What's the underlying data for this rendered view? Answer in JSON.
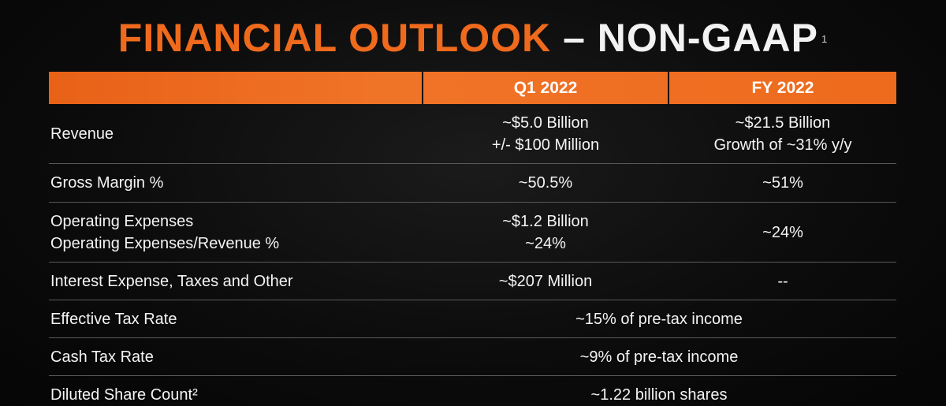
{
  "title": {
    "orange": "FINANCIAL OUTLOOK",
    "white": "– NON-GAAP",
    "footnote": "1"
  },
  "colors": {
    "accent": "#ef6a1d",
    "background": "#0c0c0c",
    "divider": "#5a5a5a"
  },
  "table": {
    "headers": [
      "",
      "Q1 2022",
      "FY 2022"
    ],
    "rows": [
      {
        "label": "Revenue",
        "q1": [
          "~$5.0 Billion",
          "+/- $100 Million"
        ],
        "fy": [
          "~$21.5 Billion",
          "Growth of ~31% y/y"
        ]
      },
      {
        "label": "Gross Margin %",
        "q1": "~50.5%",
        "fy": "~51%"
      },
      {
        "label": [
          "Operating Expenses",
          "Operating Expenses/Revenue %"
        ],
        "q1": [
          "~$1.2 Billion",
          "~24%"
        ],
        "fy": "~24%"
      },
      {
        "label": "Interest Expense, Taxes and Other",
        "q1": "~$207 Million",
        "fy": "--"
      },
      {
        "label": "Effective Tax Rate",
        "span": "~15% of pre-tax income"
      },
      {
        "label": "Cash Tax Rate",
        "span": "~9% of pre-tax income"
      },
      {
        "label": "Diluted Share Count²",
        "span": "~1.22 billion shares"
      }
    ]
  }
}
